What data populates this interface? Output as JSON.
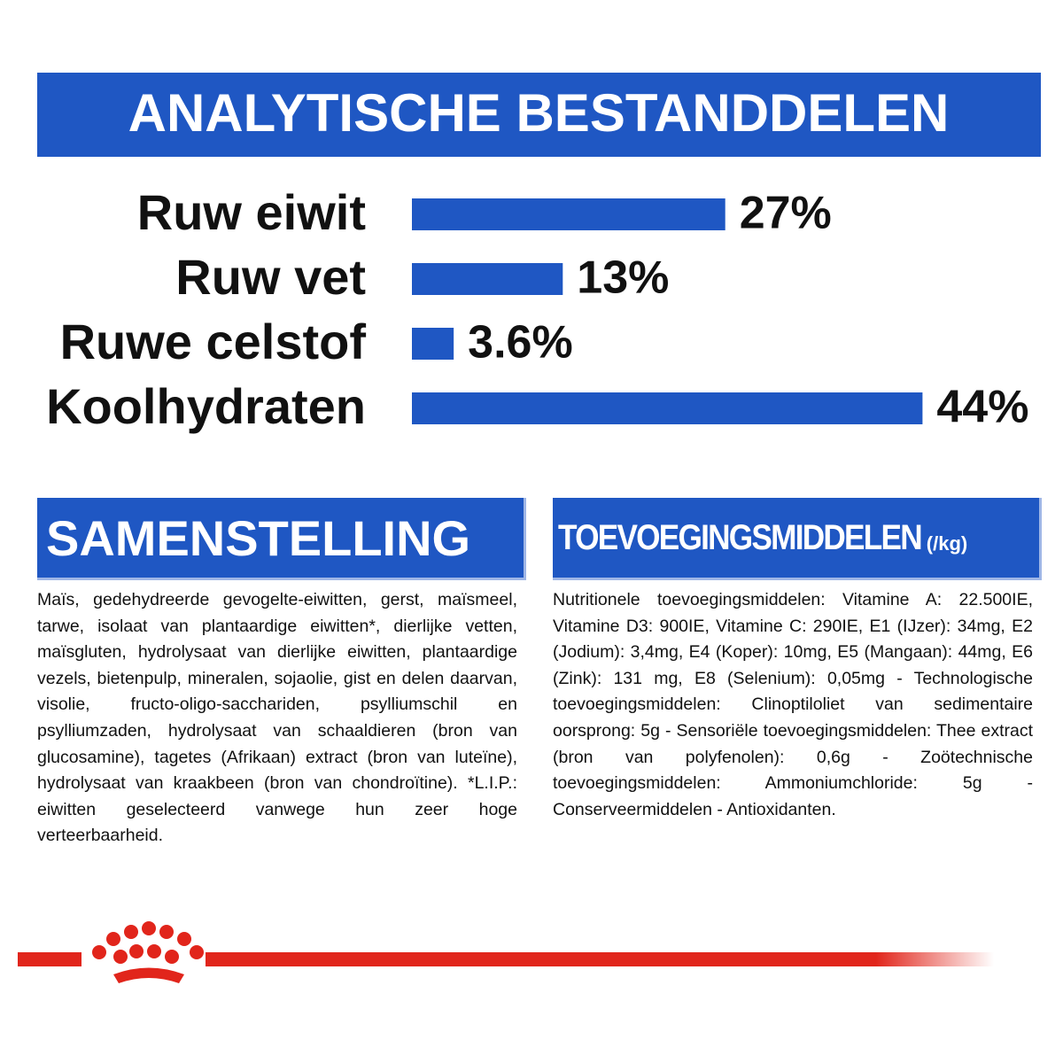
{
  "chart_data": {
    "type": "bar",
    "title": "ANALYTISCHE BESTANDDELEN",
    "categories": [
      "Ruw eiwit",
      "Ruw vet",
      "Ruwe celstof",
      "Koolhydraten"
    ],
    "values": [
      27,
      13,
      3.6,
      44
    ],
    "value_labels": [
      "27%",
      "13%",
      "3.6%",
      "44%"
    ],
    "color": "#1f57c3"
  },
  "composition": {
    "title": "SAMENSTELLING",
    "text": "Maïs, gedehydreerde gevogelte-eiwitten, gerst, maïsmeel, tarwe, isolaat van plantaardige eiwitten*, dierlijke vetten, maïsgluten, hydrolysaat van dierlijke eiwitten, plantaardige vezels, bietenpulp, mineralen, sojaolie, gist en delen daarvan, visolie, fructo-oligo-sacchariden, psylliumschil en psylliumzaden, hydrolysaat van schaaldieren (bron van glucosamine), tagetes (Afrikaan) extract (bron van luteïne), hydrolysaat van kraakbeen (bron van chondroïtine). *L.I.P.: eiwitten geselecteerd vanwege hun zeer hoge verteerbaarheid."
  },
  "additives": {
    "title": "TOEVOEGINGSMIDDELEN",
    "unit": "(/kg)",
    "text": "Nutritionele toevoegingsmiddelen: Vitamine A: 22.500IE, Vitamine D3: 900IE, Vitamine C: 290IE, E1 (IJzer): 34mg, E2 (Jodium): 3,4mg, E4 (Koper): 10mg, E5 (Mangaan): 44mg, E6 (Zink): 131 mg, E8 (Selenium): 0,05mg - Technologische toevoegingsmiddelen: Clinoptiloliet van sedimentaire oorsprong: 5g - Sensoriële toevoegingsmiddelen: Thee extract (bron van polyfenolen): 0,6g - Zoötechnische toevoegingsmiddelen: Ammoniumchloride: 5g - Conserveermiddelen - Antioxidanten."
  }
}
